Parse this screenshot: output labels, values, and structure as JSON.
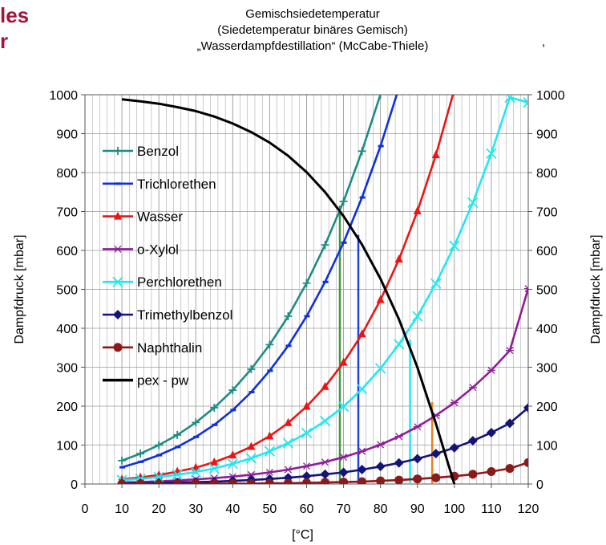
{
  "page_fragments": {
    "line1": "les",
    "line2": "r"
  },
  "trailing_mark": ",",
  "chart_data": {
    "type": "line",
    "title": [
      "Gemischsiedetemperatur",
      "(Siedetemperatur binäres Gemisch)",
      "„Wasserdampfdestillation“ (McCabe-Thiele)"
    ],
    "xlabel": "[°C]",
    "ylabel": "Dampfdruck [mbar]",
    "ylabel_right": "Dampfdruck [mbar]",
    "xlim": [
      0,
      120
    ],
    "ylim": [
      0,
      1000
    ],
    "x_ticks": [
      0,
      10,
      20,
      30,
      40,
      50,
      60,
      70,
      80,
      90,
      100,
      110,
      120
    ],
    "y_ticks": [
      0,
      100,
      200,
      300,
      400,
      500,
      600,
      700,
      800,
      900,
      1000
    ],
    "grid": true,
    "legend_position": "top-left",
    "series": [
      {
        "name": "Benzol",
        "color": "#1e8c84",
        "marker": "plus",
        "x": [
          10,
          15,
          20,
          25,
          30,
          35,
          40,
          45,
          50,
          55,
          60,
          65,
          70,
          75,
          80
        ],
        "y": [
          60,
          78,
          100,
          126,
          158,
          196,
          241,
          295,
          358,
          431,
          516,
          614,
          726,
          855,
          1001
        ]
      },
      {
        "name": "Trichlorethen",
        "color": "#1030e0",
        "marker": "dash",
        "x": [
          10,
          15,
          20,
          25,
          30,
          35,
          40,
          45,
          50,
          55,
          60,
          65,
          70,
          75,
          80,
          85
        ],
        "y": [
          43,
          57,
          74,
          95,
          121,
          152,
          190,
          236,
          291,
          355,
          431,
          519,
          620,
          736,
          868,
          1018
        ]
      },
      {
        "name": "Wasser",
        "color": "#ee1414",
        "marker": "triangle",
        "x": [
          10,
          15,
          20,
          25,
          30,
          35,
          40,
          45,
          50,
          55,
          60,
          65,
          70,
          75,
          80,
          85,
          90,
          95,
          100
        ],
        "y": [
          12,
          17,
          23,
          32,
          42,
          56,
          74,
          96,
          123,
          157,
          199,
          250,
          312,
          385,
          473,
          577,
          701,
          845,
          1013
        ]
      },
      {
        "name": "o-Xylol",
        "color": "#8e1e98",
        "marker": "star",
        "x": [
          10,
          15,
          20,
          25,
          30,
          35,
          40,
          45,
          50,
          55,
          60,
          65,
          70,
          75,
          80,
          85,
          90,
          95,
          100,
          105,
          110,
          115,
          120
        ],
        "y": [
          4,
          5,
          7,
          9,
          12,
          15,
          19,
          24,
          30,
          37,
          46,
          56,
          69,
          84,
          101,
          122,
          147,
          176,
          209,
          248,
          292,
          343,
          502
        ]
      },
      {
        "name": "Perchlorethen",
        "color": "#20e8f0",
        "marker": "x",
        "x": [
          10,
          15,
          20,
          25,
          30,
          35,
          40,
          45,
          50,
          55,
          60,
          65,
          70,
          75,
          80,
          85,
          90,
          95,
          100,
          105,
          110,
          115,
          120
        ],
        "y": [
          10,
          13,
          18,
          24,
          31,
          40,
          52,
          66,
          84,
          105,
          131,
          162,
          199,
          244,
          297,
          359,
          431,
          515,
          612,
          723,
          849,
          993,
          980
        ]
      },
      {
        "name": "Trimethylbenzol",
        "color": "#141478",
        "marker": "diamond",
        "x": [
          10,
          15,
          20,
          25,
          30,
          35,
          40,
          45,
          50,
          55,
          60,
          65,
          70,
          75,
          80,
          85,
          90,
          95,
          100,
          105,
          110,
          115,
          120
        ],
        "y": [
          2,
          2,
          3,
          4,
          5,
          6,
          8,
          10,
          13,
          16,
          20,
          25,
          30,
          37,
          45,
          54,
          65,
          78,
          93,
          111,
          132,
          156,
          196
        ]
      },
      {
        "name": "Naphthalin",
        "color": "#8b1a1a",
        "marker": "circle",
        "x": [
          10,
          15,
          20,
          25,
          30,
          35,
          40,
          45,
          50,
          55,
          60,
          65,
          70,
          75,
          80,
          85,
          90,
          95,
          100,
          105,
          110,
          115,
          120
        ],
        "y": [
          0,
          0,
          0,
          0,
          1,
          1,
          1,
          1,
          2,
          2,
          3,
          4,
          5,
          6,
          8,
          10,
          13,
          16,
          20,
          25,
          32,
          40,
          55
        ]
      },
      {
        "name": "pex - pw",
        "color": "#000000",
        "marker": "none",
        "x": [
          10,
          15,
          20,
          25,
          30,
          35,
          40,
          45,
          50,
          55,
          60,
          65,
          70,
          75,
          80,
          85,
          90,
          95,
          100
        ],
        "y": [
          988,
          983,
          977,
          968,
          958,
          944,
          926,
          904,
          877,
          843,
          801,
          750,
          688,
          615,
          527,
          423,
          299,
          155,
          0
        ]
      }
    ],
    "vertical_markers": [
      {
        "x": 69,
        "y": 715,
        "color": "#3a9a3a"
      },
      {
        "x": 74,
        "y": 640,
        "color": "#2040e0"
      },
      {
        "x": 88,
        "y": 370,
        "color": "#20e8f0"
      },
      {
        "x": 94,
        "y": 210,
        "color": "#e88020"
      }
    ]
  }
}
